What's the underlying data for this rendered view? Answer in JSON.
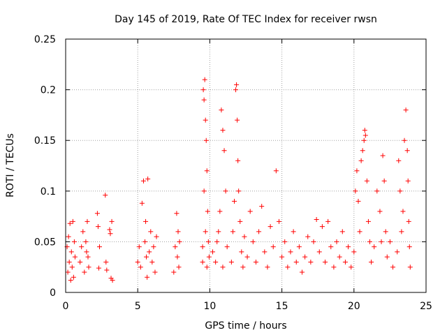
{
  "chart_data": {
    "type": "scatter",
    "title": "Day 145 of 2019, Rate Of TEC Index for receiver rwsn",
    "xlabel": "GPS time / hours",
    "ylabel": "ROTI / TECUs",
    "xlim": [
      0,
      25
    ],
    "ylim": [
      0,
      0.25
    ],
    "x_ticks": [
      0,
      5,
      10,
      15,
      20,
      25
    ],
    "x_tick_labels": [
      "0",
      "5",
      "10",
      "15",
      "20",
      "25"
    ],
    "y_ticks": [
      0,
      0.05,
      0.1,
      0.15,
      0.2,
      0.25
    ],
    "y_tick_labels": [
      "0",
      "0.05",
      "0.1",
      "0.15",
      "0.2",
      "0.25"
    ],
    "grid": true,
    "marker": "plus",
    "color": "#ff0000",
    "series": [
      {
        "name": "ROTI",
        "points": [
          [
            0.1,
            0.045
          ],
          [
            0.15,
            0.02
          ],
          [
            0.2,
            0.055
          ],
          [
            0.25,
            0.03
          ],
          [
            0.3,
            0.068
          ],
          [
            0.35,
            0.012
          ],
          [
            0.4,
            0.04
          ],
          [
            0.45,
            0.025
          ],
          [
            0.5,
            0.07
          ],
          [
            0.55,
            0.015
          ],
          [
            0.6,
            0.05
          ],
          [
            0.65,
            0.035
          ],
          [
            1.0,
            0.03
          ],
          [
            1.1,
            0.045
          ],
          [
            1.2,
            0.06
          ],
          [
            1.3,
            0.02
          ],
          [
            1.4,
            0.05
          ],
          [
            1.5,
            0.07
          ],
          [
            1.55,
            0.035
          ],
          [
            1.6,
            0.025
          ],
          [
            1.45,
            0.04
          ],
          [
            2.2,
            0.078
          ],
          [
            2.25,
            0.065
          ],
          [
            2.3,
            0.024
          ],
          [
            2.35,
            0.045
          ],
          [
            2.75,
            0.096
          ],
          [
            2.8,
            0.03
          ],
          [
            2.85,
            0.022
          ],
          [
            3.05,
            0.062
          ],
          [
            3.1,
            0.058
          ],
          [
            3.15,
            0.014
          ],
          [
            3.2,
            0.07
          ],
          [
            3.25,
            0.012
          ],
          [
            5.0,
            0.03
          ],
          [
            5.1,
            0.045
          ],
          [
            5.2,
            0.025
          ],
          [
            5.3,
            0.088
          ],
          [
            5.4,
            0.11
          ],
          [
            5.5,
            0.05
          ],
          [
            5.6,
            0.035
          ],
          [
            5.7,
            0.112
          ],
          [
            5.8,
            0.04
          ],
          [
            5.9,
            0.06
          ],
          [
            6.0,
            0.03
          ],
          [
            6.1,
            0.045
          ],
          [
            6.2,
            0.02
          ],
          [
            6.3,
            0.055
          ],
          [
            5.55,
            0.07
          ],
          [
            5.65,
            0.015
          ],
          [
            7.5,
            0.02
          ],
          [
            7.6,
            0.045
          ],
          [
            7.7,
            0.078
          ],
          [
            7.75,
            0.035
          ],
          [
            7.8,
            0.06
          ],
          [
            7.85,
            0.025
          ],
          [
            7.9,
            0.05
          ],
          [
            9.5,
            0.03
          ],
          [
            9.55,
            0.2
          ],
          [
            9.6,
            0.19
          ],
          [
            9.65,
            0.21
          ],
          [
            9.7,
            0.17
          ],
          [
            9.75,
            0.15
          ],
          [
            9.8,
            0.12
          ],
          [
            9.85,
            0.08
          ],
          [
            9.9,
            0.05
          ],
          [
            9.95,
            0.035
          ],
          [
            9.6,
            0.1
          ],
          [
            9.7,
            0.06
          ],
          [
            9.8,
            0.025
          ],
          [
            9.5,
            0.045
          ],
          [
            10.2,
            0.04
          ],
          [
            10.4,
            0.03
          ],
          [
            10.6,
            0.06
          ],
          [
            10.8,
            0.18
          ],
          [
            10.9,
            0.16
          ],
          [
            11.0,
            0.14
          ],
          [
            11.1,
            0.1
          ],
          [
            10.7,
            0.08
          ],
          [
            10.5,
            0.05
          ],
          [
            10.9,
            0.025
          ],
          [
            11.2,
            0.045
          ],
          [
            11.5,
            0.03
          ],
          [
            11.6,
            0.06
          ],
          [
            11.7,
            0.09
          ],
          [
            11.8,
            0.2
          ],
          [
            11.85,
            0.205
          ],
          [
            11.9,
            0.17
          ],
          [
            11.95,
            0.13
          ],
          [
            12.0,
            0.1
          ],
          [
            12.1,
            0.07
          ],
          [
            12.2,
            0.04
          ],
          [
            12.3,
            0.025
          ],
          [
            12.4,
            0.055
          ],
          [
            12.6,
            0.035
          ],
          [
            12.8,
            0.08
          ],
          [
            13.0,
            0.05
          ],
          [
            13.2,
            0.03
          ],
          [
            13.4,
            0.06
          ],
          [
            13.6,
            0.085
          ],
          [
            13.8,
            0.04
          ],
          [
            14.0,
            0.025
          ],
          [
            14.2,
            0.065
          ],
          [
            14.4,
            0.045
          ],
          [
            14.6,
            0.12
          ],
          [
            14.8,
            0.07
          ],
          [
            15.0,
            0.035
          ],
          [
            15.2,
            0.05
          ],
          [
            15.4,
            0.025
          ],
          [
            15.6,
            0.04
          ],
          [
            15.8,
            0.06
          ],
          [
            16.0,
            0.03
          ],
          [
            16.2,
            0.045
          ],
          [
            16.4,
            0.02
          ],
          [
            16.6,
            0.035
          ],
          [
            16.8,
            0.055
          ],
          [
            17.0,
            0.03
          ],
          [
            17.2,
            0.05
          ],
          [
            17.4,
            0.072
          ],
          [
            17.6,
            0.04
          ],
          [
            17.8,
            0.065
          ],
          [
            18.0,
            0.03
          ],
          [
            18.2,
            0.07
          ],
          [
            18.4,
            0.045
          ],
          [
            18.6,
            0.025
          ],
          [
            18.8,
            0.05
          ],
          [
            19.0,
            0.035
          ],
          [
            19.2,
            0.06
          ],
          [
            19.4,
            0.03
          ],
          [
            19.6,
            0.045
          ],
          [
            19.8,
            0.025
          ],
          [
            20.0,
            0.04
          ],
          [
            20.1,
            0.1
          ],
          [
            20.2,
            0.12
          ],
          [
            20.3,
            0.09
          ],
          [
            20.4,
            0.06
          ],
          [
            20.5,
            0.13
          ],
          [
            20.6,
            0.14
          ],
          [
            20.7,
            0.15
          ],
          [
            20.75,
            0.16
          ],
          [
            20.8,
            0.155
          ],
          [
            20.9,
            0.11
          ],
          [
            21.0,
            0.07
          ],
          [
            21.1,
            0.05
          ],
          [
            21.2,
            0.03
          ],
          [
            21.4,
            0.045
          ],
          [
            21.6,
            0.1
          ],
          [
            21.8,
            0.08
          ],
          [
            21.9,
            0.05
          ],
          [
            22.0,
            0.135
          ],
          [
            22.1,
            0.11
          ],
          [
            22.2,
            0.06
          ],
          [
            22.3,
            0.035
          ],
          [
            22.5,
            0.05
          ],
          [
            22.7,
            0.025
          ],
          [
            23.0,
            0.04
          ],
          [
            23.1,
            0.13
          ],
          [
            23.2,
            0.1
          ],
          [
            23.3,
            0.06
          ],
          [
            23.4,
            0.08
          ],
          [
            23.5,
            0.15
          ],
          [
            23.6,
            0.18
          ],
          [
            23.7,
            0.14
          ],
          [
            23.75,
            0.11
          ],
          [
            23.8,
            0.07
          ],
          [
            23.85,
            0.045
          ],
          [
            23.9,
            0.025
          ]
        ]
      }
    ]
  }
}
